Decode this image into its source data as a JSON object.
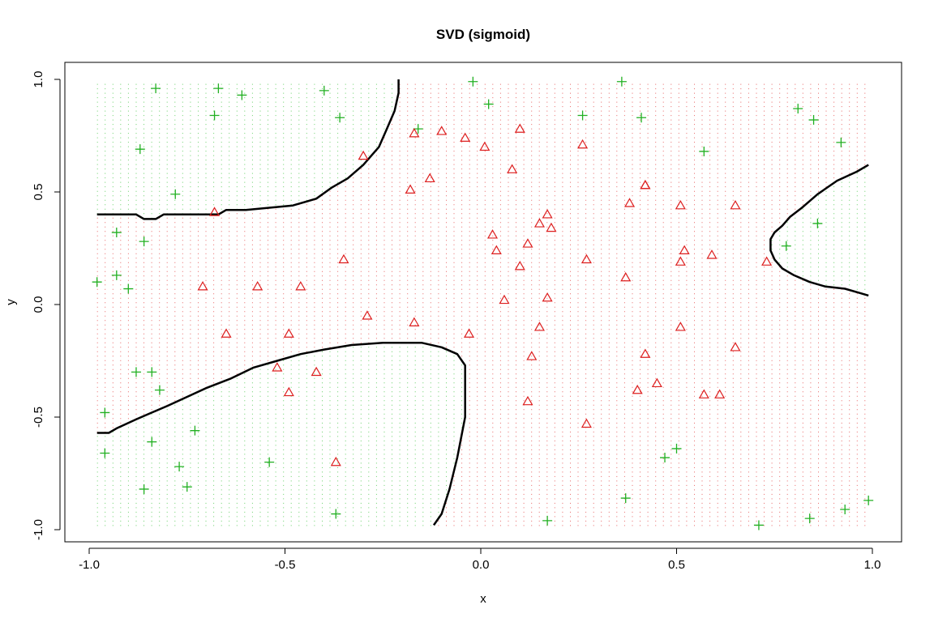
{
  "chart_data": {
    "type": "scatter",
    "title": "SVD (sigmoid)",
    "xlabel": "x",
    "ylabel": "y",
    "xlim": [
      -1.0,
      1.0
    ],
    "ylim": [
      -1.0,
      1.0
    ],
    "x_ticks": [
      -1.0,
      -0.5,
      0.0,
      0.5,
      1.0
    ],
    "x_tick_labels": [
      "-1.0",
      "-0.5",
      "0.0",
      "0.5",
      "1.0"
    ],
    "y_ticks": [
      -1.0,
      -0.5,
      0.0,
      0.5,
      1.0
    ],
    "y_tick_labels": [
      "-1.0",
      "-0.5",
      "0.0",
      "0.5",
      "1.0"
    ],
    "colors": {
      "plus": "#22b022",
      "triangle": "#dd1f1f",
      "boundary": "#000000",
      "grid_green": "#34c034",
      "grid_red": "#e03030"
    },
    "series": [
      {
        "marker": "plus",
        "color": "#22b022",
        "points": [
          [
            -0.98,
            0.1
          ],
          [
            -0.93,
            0.32
          ],
          [
            -0.93,
            0.13
          ],
          [
            -0.9,
            0.07
          ],
          [
            -0.87,
            0.69
          ],
          [
            -0.86,
            0.28
          ],
          [
            -0.83,
            0.96
          ],
          [
            -0.78,
            0.49
          ],
          [
            -0.68,
            0.84
          ],
          [
            -0.67,
            0.96
          ],
          [
            -0.61,
            0.93
          ],
          [
            -0.4,
            0.95
          ],
          [
            -0.36,
            0.83
          ],
          [
            -0.16,
            0.78
          ],
          [
            -0.02,
            0.99
          ],
          [
            0.02,
            0.89
          ],
          [
            0.26,
            0.84
          ],
          [
            0.36,
            0.99
          ],
          [
            0.41,
            0.83
          ],
          [
            0.57,
            0.68
          ],
          [
            0.81,
            0.87
          ],
          [
            0.85,
            0.82
          ],
          [
            0.92,
            0.72
          ],
          [
            0.86,
            0.36
          ],
          [
            0.78,
            0.26
          ],
          [
            -0.88,
            -0.3
          ],
          [
            -0.84,
            -0.3
          ],
          [
            -0.82,
            -0.38
          ],
          [
            -0.96,
            -0.48
          ],
          [
            -0.96,
            -0.66
          ],
          [
            -0.84,
            -0.61
          ],
          [
            -0.73,
            -0.56
          ],
          [
            -0.77,
            -0.72
          ],
          [
            -0.75,
            -0.81
          ],
          [
            -0.86,
            -0.82
          ],
          [
            -0.54,
            -0.7
          ],
          [
            -0.37,
            -0.93
          ],
          [
            0.17,
            -0.96
          ],
          [
            0.37,
            -0.86
          ],
          [
            0.47,
            -0.68
          ],
          [
            0.5,
            -0.64
          ],
          [
            0.71,
            -0.98
          ],
          [
            0.84,
            -0.95
          ],
          [
            0.93,
            -0.91
          ],
          [
            0.99,
            -0.87
          ]
        ]
      },
      {
        "marker": "triangle",
        "color": "#dd1f1f",
        "points": [
          [
            -0.68,
            0.41
          ],
          [
            -0.3,
            0.66
          ],
          [
            -0.18,
            0.51
          ],
          [
            -0.17,
            0.76
          ],
          [
            -0.13,
            0.56
          ],
          [
            -0.1,
            0.77
          ],
          [
            -0.04,
            0.74
          ],
          [
            0.01,
            0.7
          ],
          [
            0.08,
            0.6
          ],
          [
            0.1,
            0.78
          ],
          [
            0.26,
            0.71
          ],
          [
            0.03,
            0.31
          ],
          [
            0.04,
            0.24
          ],
          [
            0.12,
            0.27
          ],
          [
            0.15,
            0.36
          ],
          [
            0.17,
            0.4
          ],
          [
            0.18,
            0.34
          ],
          [
            0.1,
            0.17
          ],
          [
            0.06,
            0.02
          ],
          [
            0.17,
            0.03
          ],
          [
            0.27,
            0.2
          ],
          [
            0.38,
            0.45
          ],
          [
            0.42,
            0.53
          ],
          [
            0.42,
            0.53
          ],
          [
            0.51,
            0.44
          ],
          [
            0.65,
            0.44
          ],
          [
            0.52,
            0.24
          ],
          [
            0.51,
            0.19
          ],
          [
            0.59,
            0.22
          ],
          [
            0.37,
            0.12
          ],
          [
            0.73,
            0.19
          ],
          [
            -0.71,
            0.08
          ],
          [
            -0.57,
            0.08
          ],
          [
            -0.46,
            0.08
          ],
          [
            -0.35,
            0.2
          ],
          [
            -0.29,
            -0.05
          ],
          [
            -0.65,
            -0.13
          ],
          [
            -0.49,
            -0.13
          ],
          [
            -0.17,
            -0.08
          ],
          [
            -0.03,
            -0.13
          ],
          [
            0.15,
            -0.1
          ],
          [
            0.13,
            -0.23
          ],
          [
            0.51,
            -0.1
          ],
          [
            0.65,
            -0.19
          ],
          [
            0.42,
            -0.22
          ],
          [
            -0.52,
            -0.28
          ],
          [
            -0.49,
            -0.39
          ],
          [
            -0.42,
            -0.3
          ],
          [
            0.12,
            -0.43
          ],
          [
            0.4,
            -0.38
          ],
          [
            0.45,
            -0.35
          ],
          [
            0.57,
            -0.4
          ],
          [
            0.61,
            -0.4
          ],
          [
            0.27,
            -0.53
          ],
          [
            -0.37,
            -0.7
          ]
        ]
      }
    ],
    "boundaries": [
      [
        [
          -0.98,
          0.4
        ],
        [
          -0.88,
          0.4
        ],
        [
          -0.86,
          0.38
        ],
        [
          -0.83,
          0.38
        ],
        [
          -0.81,
          0.4
        ],
        [
          -0.67,
          0.4
        ],
        [
          -0.65,
          0.42
        ],
        [
          -0.6,
          0.42
        ],
        [
          -0.54,
          0.43
        ],
        [
          -0.48,
          0.44
        ],
        [
          -0.42,
          0.47
        ],
        [
          -0.38,
          0.52
        ],
        [
          -0.34,
          0.56
        ],
        [
          -0.3,
          0.62
        ],
        [
          -0.26,
          0.7
        ],
        [
          -0.24,
          0.78
        ],
        [
          -0.22,
          0.86
        ],
        [
          -0.21,
          0.94
        ],
        [
          -0.21,
          1.0
        ]
      ],
      [
        [
          -0.98,
          -0.57
        ],
        [
          -0.95,
          -0.57
        ],
        [
          -0.93,
          -0.55
        ],
        [
          -0.88,
          -0.51
        ],
        [
          -0.84,
          -0.48
        ],
        [
          -0.8,
          -0.45
        ],
        [
          -0.75,
          -0.41
        ],
        [
          -0.7,
          -0.37
        ],
        [
          -0.64,
          -0.33
        ],
        [
          -0.58,
          -0.28
        ],
        [
          -0.52,
          -0.25
        ],
        [
          -0.46,
          -0.22
        ],
        [
          -0.4,
          -0.2
        ],
        [
          -0.33,
          -0.18
        ],
        [
          -0.25,
          -0.17
        ],
        [
          -0.15,
          -0.17
        ],
        [
          -0.1,
          -0.19
        ],
        [
          -0.06,
          -0.22
        ],
        [
          -0.04,
          -0.27
        ],
        [
          -0.04,
          -0.5
        ],
        [
          -0.06,
          -0.68
        ],
        [
          -0.08,
          -0.82
        ],
        [
          -0.1,
          -0.93
        ],
        [
          -0.12,
          -0.98
        ]
      ],
      [
        [
          0.99,
          0.62
        ],
        [
          0.96,
          0.59
        ],
        [
          0.91,
          0.55
        ],
        [
          0.86,
          0.49
        ],
        [
          0.82,
          0.43
        ],
        [
          0.79,
          0.39
        ],
        [
          0.77,
          0.35
        ],
        [
          0.75,
          0.32
        ],
        [
          0.74,
          0.29
        ],
        [
          0.74,
          0.24
        ],
        [
          0.75,
          0.2
        ],
        [
          0.77,
          0.16
        ],
        [
          0.8,
          0.13
        ],
        [
          0.84,
          0.1
        ],
        [
          0.88,
          0.08
        ],
        [
          0.93,
          0.07
        ],
        [
          0.97,
          0.05
        ],
        [
          0.99,
          0.04
        ]
      ]
    ],
    "grid": true,
    "legend": "none"
  }
}
